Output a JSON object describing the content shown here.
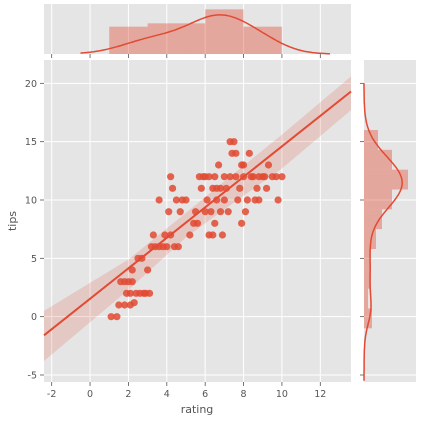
{
  "chart_data": {
    "type": "scatter",
    "subtype": "jointplot",
    "xlabel": "rating",
    "ylabel": "tips",
    "xlim": [
      -2.4,
      13.6
    ],
    "ylim": [
      -5.6,
      22
    ],
    "x_ticks": [
      "-2",
      "0",
      "2",
      "4",
      "6",
      "8",
      "10",
      "12"
    ],
    "y_ticks": [
      "-5",
      "0",
      "5",
      "10",
      "15",
      "20"
    ],
    "grid": true,
    "color": "#e24a33",
    "background": "#e5e5e5",
    "regression": {
      "x": [
        -2.4,
        13.6
      ],
      "y": [
        -1.6,
        19.3
      ]
    },
    "confidence_band": {
      "x": [
        -2.4,
        2,
        5,
        7,
        10,
        13.6
      ],
      "upper": [
        0.5,
        4.9,
        8.9,
        11.6,
        15.6,
        20.6
      ],
      "lower": [
        -3.8,
        2.3,
        6.8,
        9.2,
        12.7,
        17.7
      ]
    },
    "points": [
      [
        1.1,
        0
      ],
      [
        1.4,
        0
      ],
      [
        1.5,
        1
      ],
      [
        1.8,
        1
      ],
      [
        1.6,
        3
      ],
      [
        1.8,
        3
      ],
      [
        2.0,
        3
      ],
      [
        2.2,
        3
      ],
      [
        2.1,
        1
      ],
      [
        2.3,
        1.2
      ],
      [
        1.9,
        2
      ],
      [
        2.1,
        2
      ],
      [
        2.2,
        4
      ],
      [
        2.4,
        2
      ],
      [
        2.6,
        2
      ],
      [
        2.8,
        2
      ],
      [
        2.9,
        2
      ],
      [
        3.1,
        2
      ],
      [
        2.5,
        5
      ],
      [
        2.7,
        5
      ],
      [
        3.0,
        4
      ],
      [
        3.2,
        6
      ],
      [
        3.4,
        6
      ],
      [
        3.3,
        7
      ],
      [
        3.6,
        6
      ],
      [
        3.8,
        6
      ],
      [
        3.6,
        10
      ],
      [
        4.0,
        6
      ],
      [
        4.2,
        7
      ],
      [
        4.4,
        6
      ],
      [
        4.6,
        6
      ],
      [
        4.7,
        9
      ],
      [
        4.8,
        10
      ],
      [
        5.0,
        10
      ],
      [
        4.3,
        11
      ],
      [
        4.2,
        12
      ],
      [
        4.5,
        10
      ],
      [
        5.2,
        7
      ],
      [
        5.4,
        8
      ],
      [
        5.6,
        8
      ],
      [
        5.8,
        11
      ],
      [
        5.9,
        12
      ],
      [
        6.0,
        9
      ],
      [
        6.1,
        10
      ],
      [
        6.2,
        12
      ],
      [
        6.3,
        9
      ],
      [
        6.4,
        11
      ],
      [
        6.5,
        12
      ],
      [
        6.2,
        7
      ],
      [
        6.4,
        7
      ],
      [
        6.5,
        8
      ],
      [
        6.6,
        10
      ],
      [
        6.7,
        13
      ],
      [
        6.8,
        9
      ],
      [
        6.9,
        7
      ],
      [
        7.0,
        12
      ],
      [
        7.1,
        11
      ],
      [
        7.2,
        9
      ],
      [
        7.3,
        15
      ],
      [
        7.5,
        15
      ],
      [
        7.4,
        14
      ],
      [
        7.6,
        12
      ],
      [
        7.7,
        10
      ],
      [
        7.8,
        11
      ],
      [
        7.9,
        13
      ],
      [
        8.0,
        12
      ],
      [
        8.1,
        9
      ],
      [
        8.2,
        10
      ],
      [
        8.3,
        14
      ],
      [
        8.4,
        12
      ],
      [
        8.5,
        12
      ],
      [
        8.6,
        10
      ],
      [
        8.7,
        11
      ],
      [
        8.8,
        12
      ],
      [
        9.0,
        12
      ],
      [
        9.2,
        11
      ],
      [
        9.3,
        13
      ],
      [
        9.5,
        12
      ],
      [
        9.7,
        12
      ],
      [
        9.8,
        10
      ],
      [
        10.0,
        12
      ],
      [
        7.6,
        14
      ],
      [
        8.0,
        13
      ],
      [
        7.0,
        10
      ],
      [
        6.0,
        12
      ],
      [
        5.5,
        9
      ],
      [
        3.9,
        7
      ],
      [
        9.1,
        12
      ],
      [
        4.1,
        9
      ],
      [
        6.8,
        11
      ],
      [
        7.9,
        8
      ],
      [
        8.8,
        10
      ],
      [
        5.7,
        12
      ],
      [
        7.3,
        12
      ],
      [
        6.6,
        11
      ]
    ],
    "x_marginal": {
      "type": "histogram+kde",
      "bins": [
        [
          1,
          3,
          4.1
        ],
        [
          3,
          5,
          4.6
        ],
        [
          5,
          6,
          4.6
        ],
        [
          6,
          8,
          6.7
        ],
        [
          8,
          10,
          4.1
        ]
      ]
    },
    "y_marginal": {
      "type": "histogram+kde"
    }
  }
}
